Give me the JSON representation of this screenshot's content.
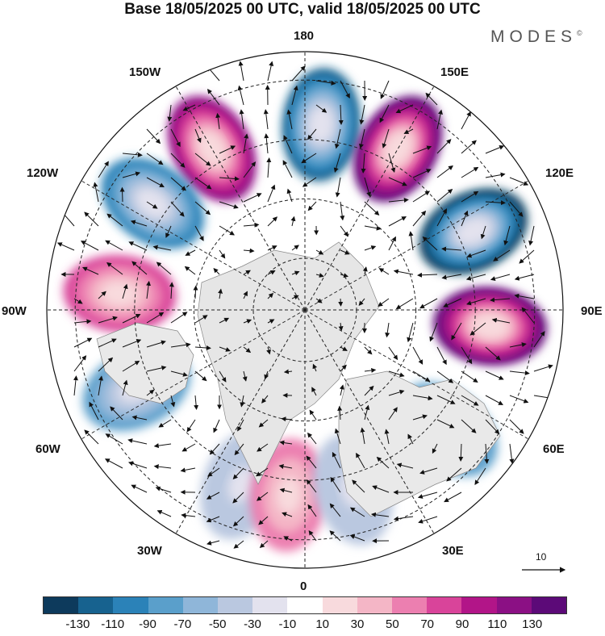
{
  "title": "Base 18/05/2025 00 UTC, valid 18/05/2025 00 UTC",
  "brand": "MODES",
  "brand_mark": "©",
  "longitudes": {
    "top": "180",
    "top_left": "150W",
    "top_right": "150E",
    "upper_left": "120W",
    "upper_right": "120E",
    "left": "90W",
    "right": "90E",
    "lower_left": "60W",
    "lower_right": "60E",
    "bottom_left": "30W",
    "bottom_right": "30E",
    "bottom": "0"
  },
  "reference_vector_label": "10",
  "colorbar": {
    "colors": [
      "#0d3a5c",
      "#17628f",
      "#2b82b8",
      "#5a9fcb",
      "#8fb6d9",
      "#bac8e0",
      "#e3e2ee",
      "#ffffff",
      "#f8dadd",
      "#f4b6c6",
      "#ec7fb0",
      "#d9449a",
      "#b21588",
      "#8b1084",
      "#5c0a78"
    ],
    "labels": [
      "-130",
      "-110",
      "-90",
      "-70",
      "-50",
      "-30",
      "-10",
      "10",
      "30",
      "50",
      "70",
      "90",
      "110",
      "130"
    ]
  },
  "map_data": {
    "projection": "north polar stereographic",
    "field": "anomaly (shaded) with wind vectors",
    "anomalies": [
      {
        "lon": 175,
        "sign": "negative",
        "magnitude": 110
      },
      {
        "lon": 150,
        "sign": "positive",
        "magnitude": 130
      },
      {
        "lon": 115,
        "sign": "negative",
        "magnitude": 130
      },
      {
        "lon": 85,
        "sign": "positive",
        "magnitude": 130
      },
      {
        "lon": 50,
        "sign": "negative",
        "magnitude": 70
      },
      {
        "lon": -150,
        "sign": "positive",
        "magnitude": 110
      },
      {
        "lon": -125,
        "sign": "negative",
        "magnitude": 90
      },
      {
        "lon": -95,
        "sign": "positive",
        "magnitude": 70
      },
      {
        "lon": -65,
        "sign": "negative",
        "magnitude": 70
      },
      {
        "lon": -20,
        "sign": "negative",
        "magnitude": 30
      },
      {
        "lon": -5,
        "sign": "positive",
        "magnitude": 50
      },
      {
        "lon": 15,
        "sign": "negative",
        "magnitude": 30
      }
    ]
  }
}
